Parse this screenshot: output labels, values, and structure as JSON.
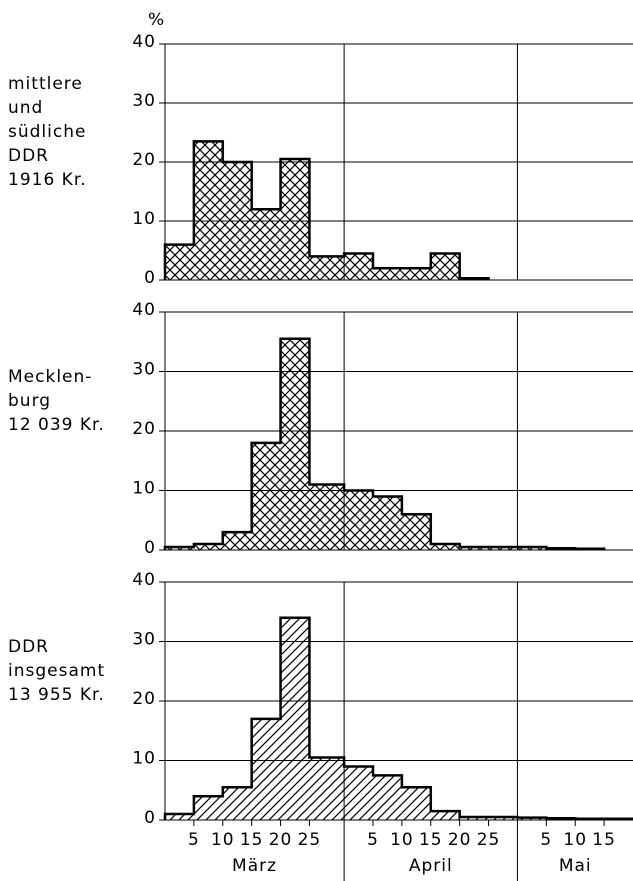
{
  "chart_data": [
    {
      "type": "histogram",
      "y_label": "%",
      "label_lines": [
        "mittlere",
        "und",
        "südliche",
        "DDR",
        "1916 Kr."
      ],
      "bins": [
        0,
        5,
        10,
        15,
        20,
        25,
        31,
        36,
        41,
        46,
        51,
        56,
        61,
        66,
        71,
        76,
        81
      ],
      "values": [
        6,
        23.5,
        20,
        12,
        20.5,
        4,
        4.5,
        2,
        2,
        4.5,
        0.3,
        null,
        null,
        null,
        null,
        null
      ],
      "xlim": [
        0,
        81
      ],
      "ylim": [
        0,
        40
      ],
      "yticks": [
        0,
        10,
        20,
        30,
        40
      ],
      "hatch": "cross"
    },
    {
      "type": "histogram",
      "label_lines": [
        "Mecklen-",
        "burg",
        "12 039 Kr."
      ],
      "bins": [
        0,
        5,
        10,
        15,
        20,
        25,
        31,
        36,
        41,
        46,
        51,
        56,
        61,
        66,
        71,
        76,
        81
      ],
      "values": [
        0.5,
        1,
        3,
        18,
        35.5,
        11,
        10,
        9,
        6,
        1,
        0.5,
        0.5,
        0.5,
        0.3,
        0.2,
        null
      ],
      "xlim": [
        0,
        81
      ],
      "ylim": [
        0,
        40
      ],
      "yticks": [
        0,
        10,
        20,
        30,
        40
      ],
      "hatch": "cross"
    },
    {
      "type": "histogram",
      "label_lines": [
        "DDR",
        "insgesamt",
        "13 955 Kr."
      ],
      "bins": [
        0,
        5,
        10,
        15,
        20,
        25,
        31,
        36,
        41,
        46,
        51,
        56,
        61,
        66,
        71,
        76,
        81
      ],
      "values": [
        1,
        4,
        5.5,
        17,
        34,
        10.5,
        9,
        7.5,
        5.5,
        1.5,
        0.5,
        0.5,
        0.4,
        0.3,
        0.2,
        0.2
      ],
      "xlim": [
        0,
        81
      ],
      "ylim": [
        0,
        40
      ],
      "yticks": [
        0,
        10,
        20,
        30,
        40
      ],
      "hatch": "diagonal",
      "xticks": [
        {
          "value": 5,
          "label": "5"
        },
        {
          "value": 10,
          "label": "10"
        },
        {
          "value": 15,
          "label": "15"
        },
        {
          "value": 20,
          "label": "20"
        },
        {
          "value": 25,
          "label": "25"
        },
        {
          "value": 36,
          "label": "5"
        },
        {
          "value": 41,
          "label": "10"
        },
        {
          "value": 46,
          "label": "15"
        },
        {
          "value": 51,
          "label": "20"
        },
        {
          "value": 56,
          "label": "25"
        },
        {
          "value": 66,
          "label": "5"
        },
        {
          "value": 71,
          "label": "10"
        },
        {
          "value": 76,
          "label": "15"
        }
      ],
      "month_labels": [
        "März",
        "April",
        "Mai"
      ],
      "month_edges": [
        0,
        31,
        61,
        81
      ]
    }
  ]
}
